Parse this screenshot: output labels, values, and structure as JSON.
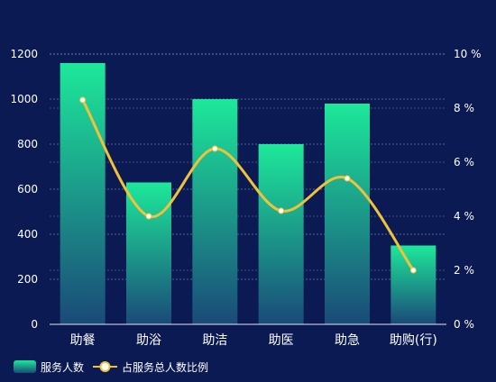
{
  "chart_data": {
    "type": "bar",
    "categories": [
      "助餐",
      "助浴",
      "助洁",
      "助医",
      "助急",
      "助购(行)"
    ],
    "series": [
      {
        "name": "服务人数",
        "kind": "bar",
        "axis": "left",
        "values": [
          1160,
          630,
          1000,
          800,
          980,
          350
        ]
      },
      {
        "name": "占服务总人数比例",
        "kind": "line",
        "axis": "right",
        "values": [
          8.3,
          4.0,
          6.5,
          4.2,
          5.4,
          2.0
        ]
      }
    ],
    "y_left": {
      "min": 0,
      "max": 1200,
      "ticks": [
        0,
        200,
        400,
        600,
        800,
        1000,
        1200
      ]
    },
    "y_right": {
      "min": 0,
      "max": 10,
      "ticks": [
        "0 %",
        "2 %",
        "4 %",
        "6 %",
        "8 %",
        "10 %"
      ]
    },
    "grid": true,
    "legend_position": "bottom-left",
    "colors": {
      "background": "#0b1a52",
      "bar_top": "#1de89a",
      "bar_bottom": "#1a4a78",
      "line": "#f0c23a",
      "marker_fill": "#ffffff",
      "text": "#ffffff",
      "grid": "#9aa6c9"
    }
  }
}
